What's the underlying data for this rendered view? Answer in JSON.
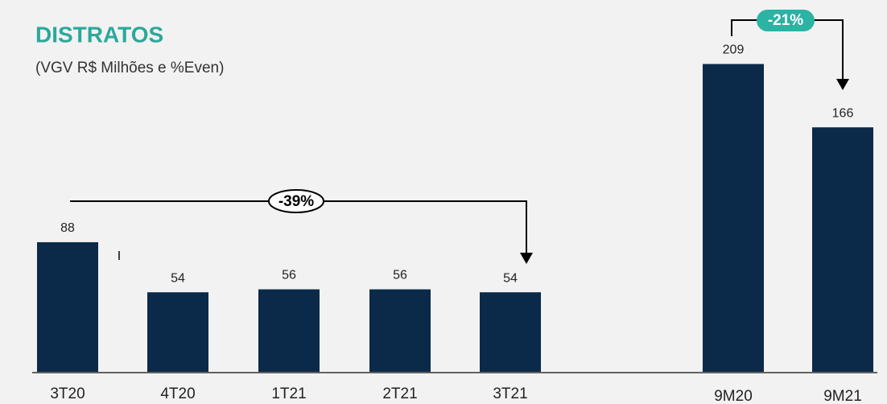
{
  "chart_data": {
    "type": "bar",
    "title": "DISTRATOS",
    "subtitle": "(VGV R$ Milhões e %Even)",
    "categories": [
      "3T20",
      "4T20",
      "1T21",
      "2T21",
      "3T21",
      "9M20",
      "9M21"
    ],
    "values": [
      88,
      54,
      56,
      56,
      54,
      209,
      166
    ],
    "color": "#0b2a4a",
    "annotations": [
      "-39%",
      "-21%",
      "I"
    ]
  }
}
